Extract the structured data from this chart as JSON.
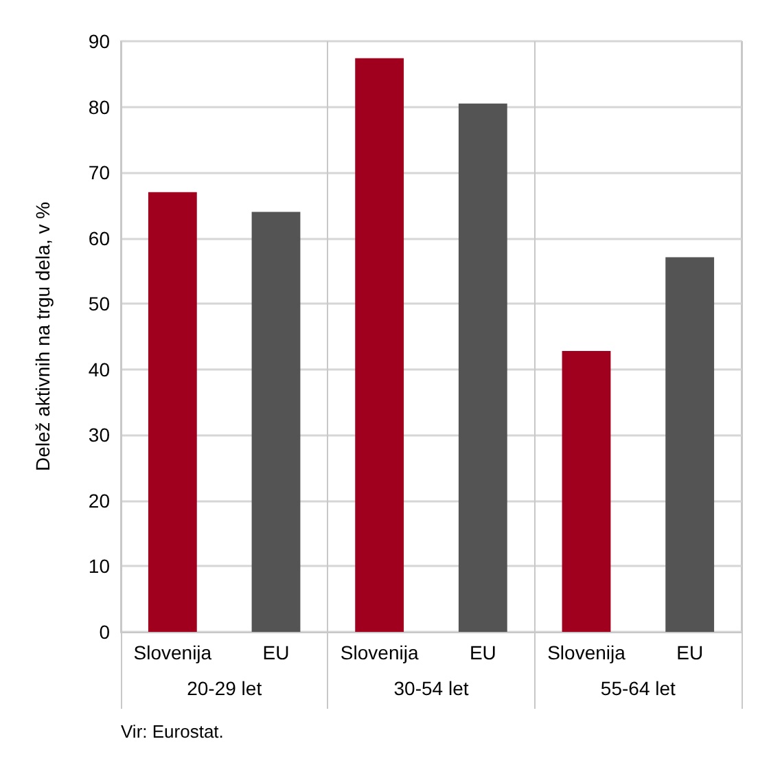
{
  "chart_data": {
    "type": "bar",
    "ylabel": "Delež aktivnih na trgu dela, v %",
    "categories": [
      "Slovenija",
      "EU",
      "Slovenija",
      "EU",
      "Slovenija",
      "EU"
    ],
    "values": [
      67,
      64,
      87.4,
      80.5,
      42.8,
      57.1
    ],
    "colors": [
      "#a0001e",
      "#545454",
      "#a0001e",
      "#545454",
      "#a0001e",
      "#545454"
    ],
    "ylim": [
      0,
      90
    ],
    "yticks": [
      0,
      10,
      20,
      30,
      40,
      50,
      60,
      70,
      80,
      90
    ],
    "grid": true,
    "annotations": [
      "20-29 let",
      "30-54 let",
      "55-64 let",
      "Vir: Eurostat."
    ]
  }
}
